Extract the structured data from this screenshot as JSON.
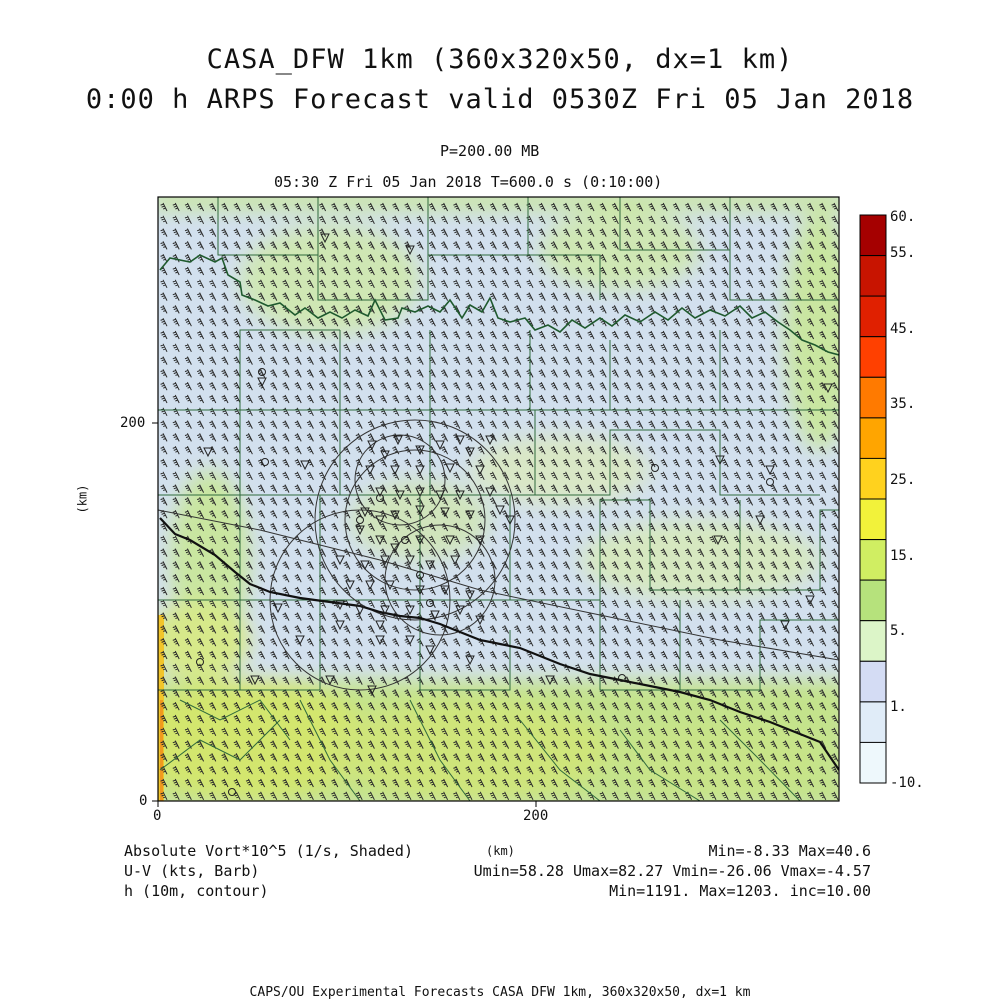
{
  "header": {
    "title_line1": "CASA_DFW 1km (360x320x50, dx=1 km)",
    "title_line2": "0:00 h ARPS Forecast valid 0530Z Fri 05 Jan 2018",
    "level": "P=200.00 MB",
    "time_info": "05:30 Z Fri 05 Jan 2018   T=600.0 s (0:10:00)"
  },
  "axes": {
    "y_label": "(km)",
    "x_label": "(km)",
    "y_ticks": [
      "0",
      "200"
    ],
    "x_ticks": [
      "0",
      "200"
    ]
  },
  "colorbar": {
    "labels": [
      "60.",
      "55.",
      "45.",
      "35.",
      "25.",
      "15.",
      "5.",
      "1.",
      "-10."
    ],
    "colors": [
      "#a50000",
      "#c81400",
      "#e02000",
      "#ff4000",
      "#ff7a00",
      "#ffa500",
      "#ffd21e",
      "#f2f23a",
      "#d0ee62",
      "#b6e27c",
      "#dcf5c8",
      "#d4dcf4",
      "#e0ecf8",
      "#eef8fc"
    ]
  },
  "legend": {
    "row1_left": "Absolute Vort*10^5 (1/s, Shaded)",
    "row1_right": "Min=-8.33 Max=40.6",
    "row2_left": "U-V (kts, Barb)",
    "row2_right": "Umin=58.28 Umax=82.27 Vmin=-26.06 Vmax=-4.57",
    "row3_left": "h (10m, contour)",
    "row3_right": "Min=1191. Max=1203. inc=10.00"
  },
  "footer": "CAPS/OU Experimental Forecasts  CASA DFW 1km, 360x320x50, dx=1 km"
}
